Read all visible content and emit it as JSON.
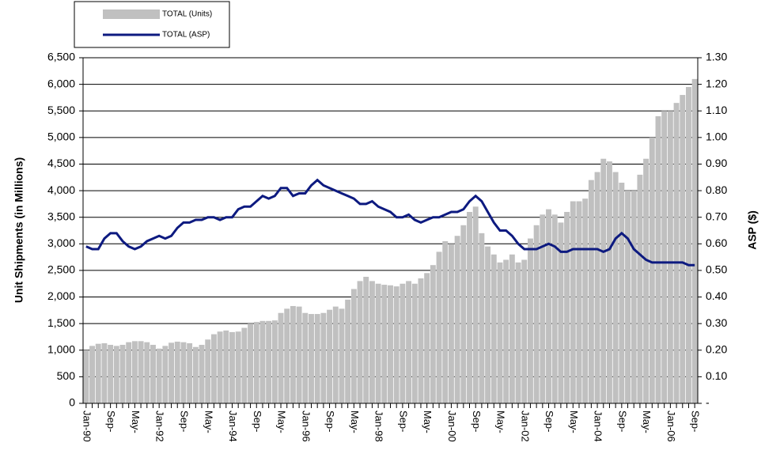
{
  "chart_data": {
    "type": "bar-line",
    "categories": [
      "Jan-90",
      null,
      null,
      null,
      "Sep-",
      null,
      null,
      null,
      "May-",
      null,
      null,
      null,
      "Jan-92",
      null,
      null,
      null,
      "Sep-",
      null,
      null,
      null,
      "May-",
      null,
      null,
      null,
      "Jan-94",
      null,
      null,
      null,
      "Sep-",
      null,
      null,
      null,
      "May-",
      null,
      null,
      null,
      "Jan-96",
      null,
      null,
      null,
      "Sep-",
      null,
      null,
      null,
      "May-",
      null,
      null,
      null,
      "Jan-98",
      null,
      null,
      null,
      "Sep-",
      null,
      null,
      null,
      "May-",
      null,
      null,
      null,
      "Jan-00",
      null,
      null,
      null,
      "Sep-",
      null,
      null,
      null,
      "May-",
      null,
      null,
      null,
      "Jan-02",
      null,
      null,
      null,
      "Sep-",
      null,
      null,
      null,
      "May-",
      null,
      null,
      null,
      "Jan-04",
      null,
      null,
      null,
      "Sep-",
      null,
      null,
      null,
      "May-",
      null,
      null,
      null,
      "Jan-06",
      null,
      null,
      null,
      "Sep-"
    ],
    "series": [
      {
        "name": "TOTAL (Units)",
        "type": "bar",
        "color": "#c0c0c0",
        "values": [
          1000,
          1080,
          1120,
          1130,
          1100,
          1080,
          1100,
          1150,
          1170,
          1170,
          1150,
          1100,
          1030,
          1080,
          1140,
          1160,
          1150,
          1130,
          1060,
          1100,
          1200,
          1300,
          1350,
          1370,
          1340,
          1350,
          1420,
          1500,
          1530,
          1550,
          1550,
          1560,
          1700,
          1780,
          1830,
          1820,
          1700,
          1680,
          1680,
          1700,
          1760,
          1820,
          1780,
          1950,
          2150,
          2300,
          2380,
          2300,
          2250,
          2230,
          2220,
          2200,
          2250,
          2300,
          2250,
          2350,
          2450,
          2600,
          2850,
          3050,
          3000,
          3150,
          3350,
          3600,
          3700,
          3200,
          2950,
          2800,
          2650,
          2700,
          2800,
          2650,
          2700,
          3100,
          3350,
          3550,
          3650,
          3550,
          3400,
          3600,
          3800,
          3800,
          3850,
          4200,
          4350,
          4600,
          4550,
          4350,
          4150,
          4000,
          4000,
          4300,
          4600,
          5000,
          5400,
          5500,
          5500,
          5650,
          5800,
          5950,
          6100
        ]
      },
      {
        "name": "TOTAL (ASP)",
        "type": "line",
        "axis": "y2",
        "color": "#0d1a80",
        "values": [
          0.59,
          0.58,
          0.58,
          0.62,
          0.64,
          0.64,
          0.61,
          0.59,
          0.58,
          0.59,
          0.61,
          0.62,
          0.63,
          0.62,
          0.63,
          0.66,
          0.68,
          0.68,
          0.69,
          0.69,
          0.7,
          0.7,
          0.69,
          0.7,
          0.7,
          0.73,
          0.74,
          0.74,
          0.76,
          0.78,
          0.77,
          0.78,
          0.81,
          0.81,
          0.78,
          0.79,
          0.79,
          0.82,
          0.84,
          0.82,
          0.81,
          0.8,
          0.79,
          0.78,
          0.77,
          0.75,
          0.75,
          0.76,
          0.74,
          0.73,
          0.72,
          0.7,
          0.7,
          0.71,
          0.69,
          0.68,
          0.69,
          0.7,
          0.7,
          0.71,
          0.72,
          0.72,
          0.73,
          0.76,
          0.78,
          0.76,
          0.72,
          0.68,
          0.65,
          0.65,
          0.63,
          0.6,
          0.58,
          0.58,
          0.58,
          0.59,
          0.6,
          0.59,
          0.57,
          0.57,
          0.58,
          0.58,
          0.58,
          0.58,
          0.58,
          0.57,
          0.58,
          0.62,
          0.64,
          0.62,
          0.58,
          0.56,
          0.54,
          0.53,
          0.53,
          0.53,
          0.53,
          0.53,
          0.53,
          0.52,
          0.52
        ]
      }
    ],
    "ylabel": "Unit Shipments (in Millions)",
    "y2label": "ASP ($)",
    "ylim": [
      0,
      6500
    ],
    "yticks": [
      0,
      500,
      {
        "value": 1000,
        "label": "1,000"
      },
      {
        "value": 1500,
        "label": "1,500"
      },
      {
        "value": 2000,
        "label": "2,000"
      },
      {
        "value": 2500,
        "label": "2,500"
      },
      {
        "value": 3000,
        "label": "3,000"
      },
      {
        "value": 3500,
        "label": "3,500"
      },
      {
        "value": 4000,
        "label": "4,000"
      },
      {
        "value": 4500,
        "label": "4,500"
      },
      {
        "value": 5000,
        "label": "5,000"
      },
      {
        "value": 5500,
        "label": "5,500"
      },
      {
        "value": 6000,
        "label": "6,000"
      },
      {
        "value": 6500,
        "label": "6,500"
      }
    ],
    "y2lim": [
      0,
      1.3
    ],
    "y2ticks": [
      {
        "value": 0,
        "label": "-"
      },
      {
        "value": 0.1,
        "label": "0.10"
      },
      {
        "value": 0.2,
        "label": "0.20"
      },
      {
        "value": 0.3,
        "label": "0.30"
      },
      {
        "value": 0.4,
        "label": "0.40"
      },
      {
        "value": 0.5,
        "label": "0.50"
      },
      {
        "value": 0.6,
        "label": "0.60"
      },
      {
        "value": 0.7,
        "label": "0.70"
      },
      {
        "value": 0.8,
        "label": "0.80"
      },
      {
        "value": 0.9,
        "label": "0.90"
      },
      {
        "value": 1.0,
        "label": "1.00"
      },
      {
        "value": 1.1,
        "label": "1.10"
      },
      {
        "value": 1.2,
        "label": "1.20"
      },
      {
        "value": 1.3,
        "label": "1.30"
      }
    ],
    "grid": true
  }
}
